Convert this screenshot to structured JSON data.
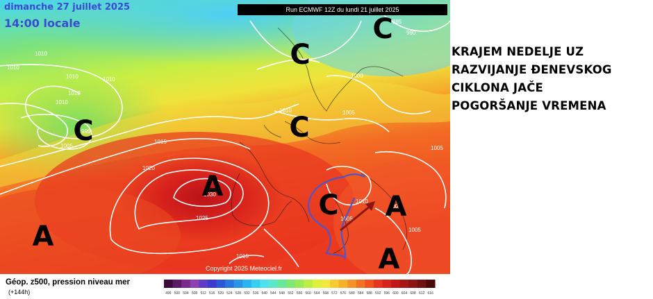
{
  "header": {
    "date_line": "dimanche 27 juillet 2025",
    "time_line": "14:00 locale",
    "run_label": "Run ECMWF 12Z du lundi 21 juillet 2025"
  },
  "caption": {
    "lines": [
      "KRAJEM NEDELJE UZ",
      "RAZVIJANJE ĐENEVSKOG",
      "CIKLONA JAČE",
      "POGORŠANJE VREMENA"
    ]
  },
  "pressure_systems": [
    {
      "kind": "low",
      "label": "C",
      "area": "north-sea"
    },
    {
      "kind": "low",
      "label": "C",
      "area": "north-atlantic"
    },
    {
      "kind": "low",
      "label": "C",
      "area": "scandinavia"
    },
    {
      "kind": "low",
      "label": "C",
      "area": "denmark"
    },
    {
      "kind": "low",
      "label": "C",
      "area": "genoa"
    },
    {
      "kind": "high",
      "label": "A",
      "area": "iberia"
    },
    {
      "kind": "high",
      "label": "A",
      "area": "atlantic"
    },
    {
      "kind": "high",
      "label": "A",
      "area": "balkans"
    },
    {
      "kind": "high",
      "label": "A",
      "area": "aegean"
    }
  ],
  "isobar_labels": [
    "1010",
    "1010",
    "1010",
    "1010",
    "1010",
    "1010",
    "995",
    "1005",
    "1015",
    "1020",
    "1030",
    "1025",
    "1015",
    "1010",
    "1005",
    "1000",
    "1005",
    "985",
    "990",
    "1005",
    "1005",
    "1010",
    "1005"
  ],
  "colors": {
    "cold": "#4fd8f3",
    "cool": "#86e96a",
    "mild": "#e6f03a",
    "warm": "#f5a129",
    "hot": "#f04a22",
    "very_hot": "#cc1d1d",
    "isobar": "#ffffff",
    "cyclone_track": "#4b57c8",
    "arrow": "#8c1414"
  },
  "legend": {
    "title": "Géop. z500, pression niveau mer",
    "subtitle": "(+144h)",
    "ticks": [
      "496",
      "500",
      "504",
      "508",
      "512",
      "516",
      "520",
      "524",
      "528",
      "532",
      "536",
      "540",
      "544",
      "548",
      "552",
      "556",
      "560",
      "564",
      "568",
      "572",
      "576",
      "580",
      "584",
      "588",
      "592",
      "596",
      "600",
      "604",
      "608",
      "612",
      "616"
    ],
    "colors": [
      "#3a0a3a",
      "#5a1a66",
      "#7a2a8e",
      "#8f3fb0",
      "#5e3ac6",
      "#3b3bd0",
      "#2d55d8",
      "#2a75e0",
      "#2a96e8",
      "#2ab5f0",
      "#35cff2",
      "#4fe0f0",
      "#5be8c8",
      "#6ae89a",
      "#7ee870",
      "#9aea55",
      "#bdee45",
      "#dcf03c",
      "#f0e83a",
      "#f5cc32",
      "#f5b02c",
      "#f59228",
      "#f27224",
      "#ee5220",
      "#e6351e",
      "#d8221c",
      "#c21818",
      "#a81616",
      "#8e1414",
      "#701010",
      "#4a0a0a"
    ]
  },
  "copyright": "Copyright 2025 Meteociel.fr"
}
